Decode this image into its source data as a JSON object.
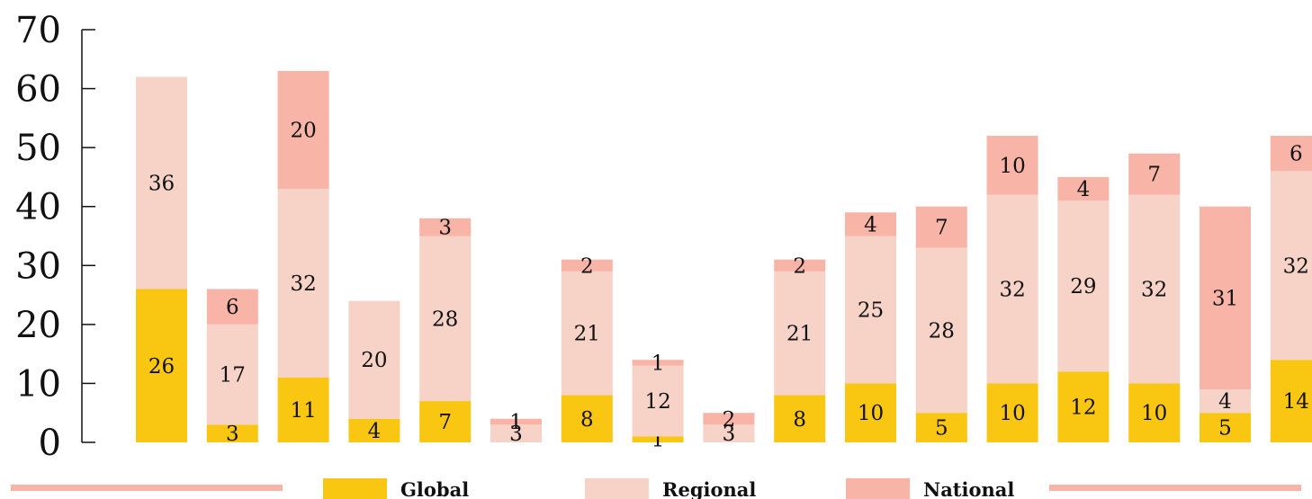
{
  "chart_data": {
    "type": "bar",
    "stacked": true,
    "categories": [
      "",
      "",
      "",
      "",
      "",
      "",
      "",
      "",
      "",
      "",
      "",
      "",
      "",
      "",
      "",
      "",
      ""
    ],
    "series": [
      {
        "name": "Global",
        "color": "#F9C612",
        "values": [
          26,
          3,
          11,
          4,
          7,
          0,
          8,
          1,
          0,
          8,
          10,
          5,
          10,
          12,
          10,
          5,
          14
        ]
      },
      {
        "name": "Regional",
        "color": "#F6D2C7",
        "values": [
          36,
          17,
          32,
          20,
          28,
          3,
          21,
          12,
          3,
          21,
          25,
          28,
          32,
          29,
          32,
          4,
          32
        ]
      },
      {
        "name": "National",
        "color": "#F8B4A6",
        "values": [
          0,
          6,
          20,
          0,
          3,
          1,
          2,
          1,
          2,
          2,
          4,
          7,
          10,
          4,
          7,
          31,
          6
        ]
      }
    ],
    "ylim": [
      0,
      70
    ],
    "yticks": [
      "0",
      "10",
      "20",
      "30",
      "40",
      "50",
      "60",
      "70"
    ],
    "legend_position": "bottom",
    "grid": false
  }
}
